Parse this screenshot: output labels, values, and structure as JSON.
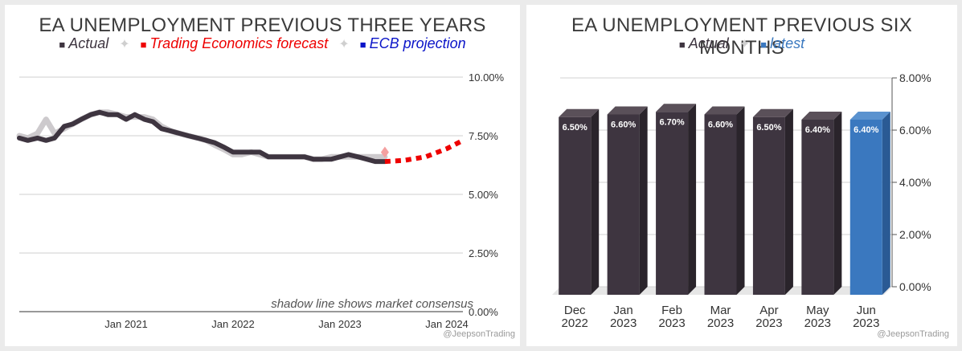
{
  "chart_data": [
    {
      "type": "line",
      "title": "EA UNEMPLOYMENT PREVIOUS THREE YEARS",
      "legend": [
        {
          "label": "Actual",
          "color": "#3e3540"
        },
        {
          "label": "Trading Economics forecast",
          "color": "#ee0000"
        },
        {
          "label": "ECB projection",
          "color": "#0a14c8"
        }
      ],
      "legend_separator": "✦",
      "ylim": [
        0,
        10
      ],
      "y_ticks": [
        "0.00%",
        "2.50%",
        "5.00%",
        "7.50%",
        "10.00%"
      ],
      "y_tick_values": [
        0,
        2.5,
        5,
        7.5,
        10
      ],
      "x_tick_labels": [
        "Jan 2021",
        "Jan 2022",
        "Jan 2023",
        "Jan 2024"
      ],
      "x_tick_values": [
        2021,
        2022,
        2023,
        2024
      ],
      "xlim": [
        2020.0,
        2024.15
      ],
      "series": [
        {
          "name": "Actual",
          "color": "#3e3540",
          "x": [
            2020.0,
            2020.08,
            2020.17,
            2020.25,
            2020.33,
            2020.42,
            2020.5,
            2020.58,
            2020.67,
            2020.75,
            2020.83,
            2020.92,
            2021.0,
            2021.08,
            2021.17,
            2021.25,
            2021.33,
            2021.42,
            2021.5,
            2021.58,
            2021.67,
            2021.75,
            2021.83,
            2021.92,
            2022.0,
            2022.08,
            2022.17,
            2022.25,
            2022.33,
            2022.42,
            2022.5,
            2022.58,
            2022.67,
            2022.75,
            2022.83,
            2022.92,
            2023.0,
            2023.08,
            2023.17,
            2023.25,
            2023.33,
            2023.42
          ],
          "y": [
            7.4,
            7.3,
            7.4,
            7.3,
            7.4,
            7.9,
            8.0,
            8.2,
            8.4,
            8.5,
            8.4,
            8.4,
            8.2,
            8.4,
            8.2,
            8.1,
            7.8,
            7.7,
            7.6,
            7.5,
            7.4,
            7.3,
            7.2,
            7.0,
            6.8,
            6.8,
            6.8,
            6.8,
            6.6,
            6.6,
            6.6,
            6.6,
            6.6,
            6.5,
            6.5,
            6.5,
            6.6,
            6.7,
            6.6,
            6.5,
            6.4,
            6.4
          ]
        },
        {
          "name": "Market consensus",
          "color": "#c8c4c8",
          "x": [
            2020.0,
            2020.08,
            2020.17,
            2020.25,
            2020.33,
            2020.42,
            2020.5,
            2020.58,
            2020.67,
            2020.75,
            2020.83,
            2020.92,
            2021.0,
            2021.08,
            2021.17,
            2021.25,
            2021.33,
            2021.42,
            2021.5,
            2021.58,
            2021.67,
            2021.75,
            2021.83,
            2021.92,
            2022.0,
            2022.08,
            2022.17,
            2022.25,
            2022.33,
            2022.42,
            2022.5,
            2022.58,
            2022.67,
            2022.75,
            2022.83,
            2022.92,
            2023.0,
            2023.08,
            2023.17,
            2023.25,
            2023.33,
            2023.42
          ],
          "y": [
            7.5,
            7.4,
            7.6,
            8.2,
            7.6,
            7.8,
            8.0,
            8.2,
            8.4,
            8.5,
            8.5,
            8.4,
            8.3,
            8.3,
            8.3,
            8.2,
            7.9,
            7.7,
            7.6,
            7.5,
            7.4,
            7.3,
            7.1,
            6.9,
            6.7,
            6.7,
            6.8,
            6.7,
            6.6,
            6.6,
            6.6,
            6.6,
            6.6,
            6.5,
            6.5,
            6.6,
            6.6,
            6.6,
            6.6,
            6.6,
            6.6,
            6.6
          ]
        },
        {
          "name": "Trading Economics forecast",
          "color": "#ee0000",
          "dashed": true,
          "x": [
            2023.42,
            2023.6,
            2023.8,
            2024.0,
            2024.15
          ],
          "y": [
            6.4,
            6.45,
            6.6,
            6.95,
            7.3
          ]
        }
      ],
      "annotation": "shadow line shows market consensus",
      "credit": "@JeepsonTrading"
    },
    {
      "type": "bar",
      "title": "EA UNEMPLOYMENT PREVIOUS SIX MONTHS",
      "legend": [
        {
          "label": "Actual",
          "color": "#3e3540"
        },
        {
          "label": "latest",
          "color": "#3a78bf"
        }
      ],
      "legend_separator": "✦",
      "categories": [
        [
          "Dec",
          "2022"
        ],
        [
          "Jan",
          "2023"
        ],
        [
          "Feb",
          "2023"
        ],
        [
          "Mar",
          "2023"
        ],
        [
          "Apr",
          "2023"
        ],
        [
          "May",
          "2023"
        ],
        [
          "Jun",
          "2023"
        ]
      ],
      "values": [
        6.5,
        6.6,
        6.7,
        6.6,
        6.5,
        6.4,
        6.4
      ],
      "value_labels": [
        "6.50%",
        "6.60%",
        "6.70%",
        "6.60%",
        "6.50%",
        "6.40%",
        "6.40%"
      ],
      "highlight_index": 6,
      "colors": {
        "actual": "#3e3540",
        "latest": "#3a78bf"
      },
      "ylim": [
        0,
        8
      ],
      "y_ticks": [
        "0.00%",
        "2.00%",
        "4.00%",
        "6.00%",
        "8.00%"
      ],
      "y_tick_values": [
        0,
        2,
        4,
        6,
        8
      ],
      "credit": "@JeepsonTrading"
    }
  ]
}
